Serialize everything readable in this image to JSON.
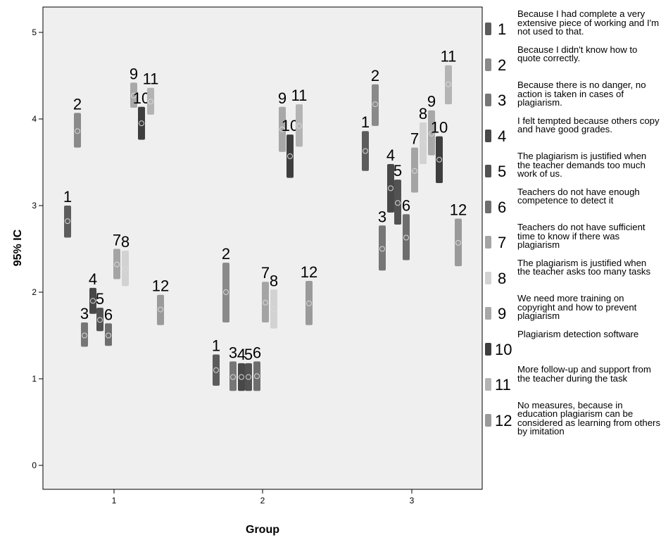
{
  "chart_data": {
    "type": "error-bar",
    "xlabel": "Group",
    "ylabel": "95% IC",
    "categories": [
      "1",
      "2",
      "3"
    ],
    "ylim": [
      -0.3,
      5.3
    ],
    "yticks": [
      "0",
      "1",
      "2",
      "3",
      "4",
      "5"
    ],
    "grid": false,
    "legend_position": "right",
    "series": [
      {
        "label": "1",
        "name": "Because I had complete a very extensive piece of working and I'm not used to that.",
        "color": "#5c5c5c",
        "values": [
          [
            2.63,
            2.82,
            3.0
          ],
          [
            0.92,
            1.1,
            1.28
          ],
          [
            3.4,
            3.63,
            3.86
          ]
        ]
      },
      {
        "label": "2",
        "name": "Because I didn't know how to quote correctly.",
        "color": "#8a8a8a",
        "values": [
          [
            3.67,
            3.86,
            4.07
          ],
          [
            1.65,
            2.0,
            2.34
          ],
          [
            3.92,
            4.17,
            4.4
          ]
        ]
      },
      {
        "label": "3",
        "name": "Because there is no danger, no action is taken in cases of plagiarism.",
        "color": "#767676",
        "values": [
          [
            1.37,
            1.5,
            1.65
          ],
          [
            0.86,
            1.02,
            1.2
          ],
          [
            2.25,
            2.5,
            2.77
          ]
        ]
      },
      {
        "label": "4",
        "name": "I felt tempted because others copy and have good grades.",
        "color": "#484848",
        "values": [
          [
            1.75,
            1.9,
            2.05
          ],
          [
            0.86,
            1.02,
            1.18
          ],
          [
            2.92,
            3.2,
            3.48
          ]
        ]
      },
      {
        "label": "5",
        "name": "The plagiarism is justified when the teacher demands too much work of us.",
        "color": "#525252",
        "values": [
          [
            1.55,
            1.68,
            1.82
          ],
          [
            0.86,
            1.02,
            1.18
          ],
          [
            2.78,
            3.03,
            3.3
          ]
        ]
      },
      {
        "label": "6",
        "name": "Teachers do not have enough competence to detect it",
        "color": "#6e6e6e",
        "values": [
          [
            1.38,
            1.5,
            1.64
          ],
          [
            0.86,
            1.03,
            1.2
          ],
          [
            2.37,
            2.63,
            2.9
          ]
        ]
      },
      {
        "label": "7",
        "name": "Teachers do not have sufficient time to know if there was plagiarism",
        "color": "#a4a4a4",
        "values": [
          [
            2.15,
            2.32,
            2.5
          ],
          [
            1.65,
            1.88,
            2.12
          ],
          [
            3.15,
            3.4,
            3.67
          ]
        ]
      },
      {
        "label": "8",
        "name": "The plagiarism is justified when the teacher asks too many tasks",
        "color": "#d2d2d2",
        "values": [
          [
            2.07,
            2.27,
            2.48
          ],
          [
            1.58,
            1.8,
            2.03
          ],
          [
            3.48,
            3.72,
            3.96
          ]
        ]
      },
      {
        "label": "9",
        "name": "We need more training on copyright and how to prevent plagiarism",
        "color": "#a8a8a8",
        "values": [
          [
            4.13,
            4.27,
            4.42
          ],
          [
            3.62,
            3.88,
            4.14
          ],
          [
            3.58,
            3.83,
            4.1
          ]
        ]
      },
      {
        "label": "10",
        "name": "Plagiarism detection software",
        "color": "#3e3e3e",
        "values": [
          [
            3.76,
            3.95,
            4.14
          ],
          [
            3.32,
            3.57,
            3.82
          ],
          [
            3.26,
            3.53,
            3.8
          ]
        ]
      },
      {
        "label": "11",
        "name": "More follow-up and support from the teacher during the task",
        "color": "#b4b4b4",
        "values": [
          [
            4.05,
            4.2,
            4.36
          ],
          [
            3.68,
            3.92,
            4.17
          ],
          [
            4.17,
            4.4,
            4.62
          ]
        ]
      },
      {
        "label": "12",
        "name": "No measures, because in education plagiarism can be considered as learning from others by imitation",
        "color": "#9a9a9a",
        "values": [
          [
            1.62,
            1.8,
            1.97
          ],
          [
            1.62,
            1.87,
            2.13
          ],
          [
            2.3,
            2.57,
            2.85
          ]
        ]
      }
    ]
  }
}
